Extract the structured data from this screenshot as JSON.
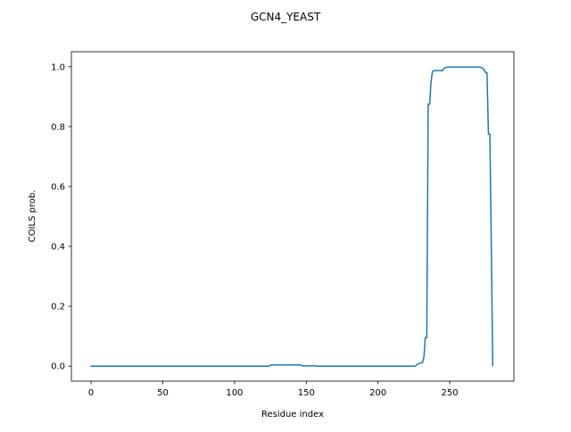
{
  "chart_data": {
    "type": "line",
    "title": "GCN4_YEAST",
    "xlabel": "Residue index",
    "ylabel": "COILS prob.",
    "xlim": [
      -13.75,
      294.75
    ],
    "ylim": [
      -0.05,
      1.05
    ],
    "x_ticks": [
      0,
      50,
      100,
      150,
      200,
      250
    ],
    "y_ticks": [
      0.0,
      0.2,
      0.4,
      0.6,
      0.8,
      1.0
    ],
    "x_tick_labels": [
      "0",
      "50",
      "100",
      "150",
      "200",
      "250"
    ],
    "y_tick_labels": [
      "0.0",
      "0.2",
      "0.4",
      "0.6",
      "0.8",
      "1.0"
    ],
    "grid": false,
    "series": [
      {
        "color": "#1f77b4",
        "x": [
          0,
          124,
          125,
          146,
          147,
          157,
          158,
          226,
          228,
          231,
          232,
          233,
          234,
          235,
          236,
          237,
          238,
          239,
          240,
          245,
          246,
          248,
          249,
          271,
          273,
          274,
          275,
          276,
          277,
          278,
          279,
          280
        ],
        "y": [
          0.0,
          0.0,
          0.004,
          0.004,
          0.001,
          0.001,
          0.0,
          0.0,
          0.008,
          0.012,
          0.03,
          0.095,
          0.095,
          0.875,
          0.875,
          0.95,
          0.985,
          0.987,
          0.987,
          0.987,
          0.995,
          0.998,
          0.999,
          0.999,
          0.995,
          0.99,
          0.98,
          0.98,
          0.775,
          0.775,
          0.4,
          0.002
        ]
      }
    ]
  }
}
